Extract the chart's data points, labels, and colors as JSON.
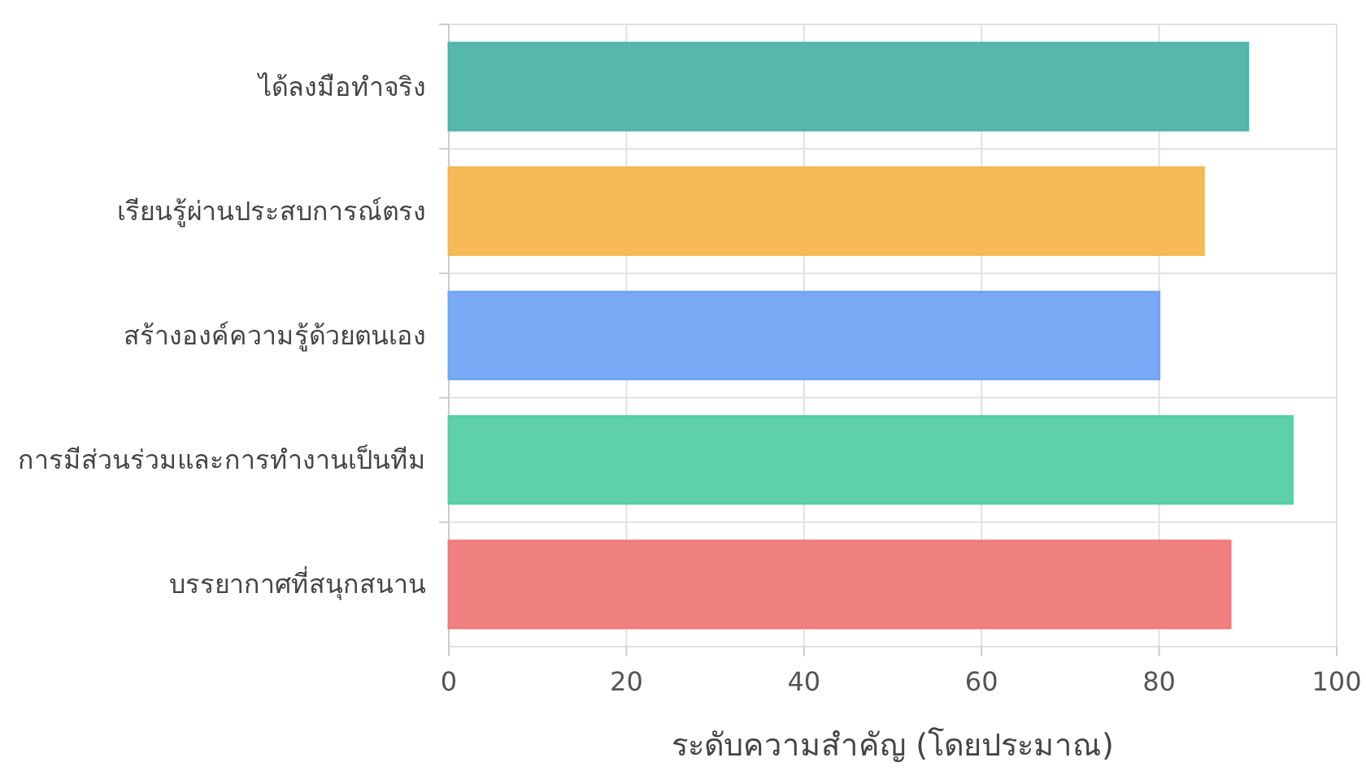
{
  "chart_data": {
    "type": "bar",
    "orientation": "horizontal",
    "xlabel": "ระดับความสำคัญ (โดยประมาณ)",
    "categories": [
      "ได้ลงมือทำจริง",
      "เรียนรู้ผ่านประสบการณ์ตรง",
      "สร้างองค์ความรู้ด้วยตนเอง",
      "การมีส่วนร่วมและการทำงานเป็นทีม",
      "บรรยากาศที่สนุกสนาน"
    ],
    "values": [
      90,
      85,
      80,
      95,
      88
    ],
    "colors": [
      "#4fb3a9",
      "#f6b74f",
      "#73a5f5",
      "#55cfa5",
      "#f07a7a"
    ],
    "xlim": [
      0,
      100
    ],
    "xticks": [
      0,
      20,
      40,
      60,
      80,
      100
    ],
    "grid": true
  }
}
